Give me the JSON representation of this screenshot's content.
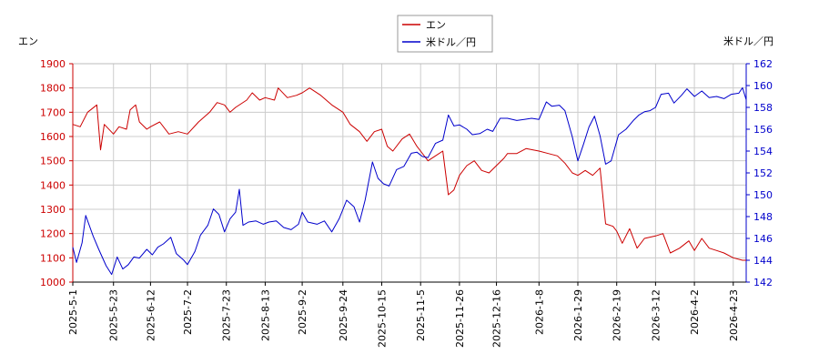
{
  "chart_data": {
    "type": "line",
    "title": "",
    "legend": {
      "placement": "top-center",
      "entries": [
        "エン",
        "米ドル／円"
      ]
    },
    "y_left": {
      "label": "エン",
      "range": [
        1000,
        1900
      ],
      "ticks": [
        "1000",
        "1100",
        "1200",
        "1300",
        "1400",
        "1500",
        "1600",
        "1700",
        "1800",
        "1900"
      ]
    },
    "y_right": {
      "label": "米ドル／円",
      "range": [
        142,
        162
      ],
      "ticks": [
        "142",
        "144",
        "146",
        "148",
        "150",
        "152",
        "154",
        "156",
        "158",
        "160",
        "162"
      ]
    },
    "x": {
      "range": [
        "2025-05-01",
        "2026-04-30"
      ],
      "ticks": [
        "2025-5-1",
        "2025-5-23",
        "2025-6-12",
        "2025-7-2",
        "2025-7-23",
        "2025-8-13",
        "2025-9-2",
        "2025-9-24",
        "2025-10-15",
        "2025-11-5",
        "2025-11-26",
        "2025-12-16",
        "2026-1-8",
        "2026-1-29",
        "2026-2-19",
        "2026-3-12",
        "2026-4-2",
        "2026-4-23"
      ]
    },
    "grid": true,
    "series": [
      {
        "name": "エン",
        "axis": "left",
        "color": "#cc0000",
        "points": [
          [
            "2025-05-01",
            1650
          ],
          [
            "2025-05-05",
            1640
          ],
          [
            "2025-05-09",
            1700
          ],
          [
            "2025-05-14",
            1730
          ],
          [
            "2025-05-16",
            1545
          ],
          [
            "2025-05-18",
            1650
          ],
          [
            "2025-05-23",
            1610
          ],
          [
            "2025-05-26",
            1640
          ],
          [
            "2025-05-30",
            1630
          ],
          [
            "2025-06-01",
            1710
          ],
          [
            "2025-06-04",
            1730
          ],
          [
            "2025-06-06",
            1660
          ],
          [
            "2025-06-10",
            1630
          ],
          [
            "2025-06-12",
            1640
          ],
          [
            "2025-06-17",
            1660
          ],
          [
            "2025-06-22",
            1610
          ],
          [
            "2025-06-27",
            1620
          ],
          [
            "2025-07-02",
            1610
          ],
          [
            "2025-07-08",
            1660
          ],
          [
            "2025-07-14",
            1700
          ],
          [
            "2025-07-18",
            1740
          ],
          [
            "2025-07-22",
            1730
          ],
          [
            "2025-07-25",
            1700
          ],
          [
            "2025-07-28",
            1720
          ],
          [
            "2025-08-03",
            1750
          ],
          [
            "2025-08-06",
            1780
          ],
          [
            "2025-08-10",
            1750
          ],
          [
            "2025-08-13",
            1760
          ],
          [
            "2025-08-18",
            1750
          ],
          [
            "2025-08-20",
            1800
          ],
          [
            "2025-08-25",
            1760
          ],
          [
            "2025-08-30",
            1770
          ],
          [
            "2025-09-02",
            1780
          ],
          [
            "2025-09-06",
            1800
          ],
          [
            "2025-09-12",
            1770
          ],
          [
            "2025-09-18",
            1730
          ],
          [
            "2025-09-24",
            1700
          ],
          [
            "2025-09-28",
            1650
          ],
          [
            "2025-10-03",
            1620
          ],
          [
            "2025-10-07",
            1580
          ],
          [
            "2025-10-11",
            1620
          ],
          [
            "2025-10-15",
            1630
          ],
          [
            "2025-10-18",
            1560
          ],
          [
            "2025-10-21",
            1540
          ],
          [
            "2025-10-26",
            1590
          ],
          [
            "2025-10-30",
            1610
          ],
          [
            "2025-11-03",
            1560
          ],
          [
            "2025-11-05",
            1540
          ],
          [
            "2025-11-09",
            1500
          ],
          [
            "2025-11-13",
            1520
          ],
          [
            "2025-11-17",
            1540
          ],
          [
            "2025-11-20",
            1360
          ],
          [
            "2025-11-23",
            1380
          ],
          [
            "2025-11-26",
            1440
          ],
          [
            "2025-11-30",
            1480
          ],
          [
            "2025-12-04",
            1500
          ],
          [
            "2025-12-08",
            1460
          ],
          [
            "2025-12-12",
            1450
          ],
          [
            "2025-12-16",
            1480
          ],
          [
            "2025-12-20",
            1510
          ],
          [
            "2025-12-22",
            1530
          ],
          [
            "2025-12-27",
            1530
          ],
          [
            "2026-01-01",
            1550
          ],
          [
            "2026-01-08",
            1540
          ],
          [
            "2026-01-13",
            1530
          ],
          [
            "2026-01-18",
            1520
          ],
          [
            "2026-01-22",
            1490
          ],
          [
            "2026-01-26",
            1450
          ],
          [
            "2026-01-29",
            1440
          ],
          [
            "2026-02-02",
            1460
          ],
          [
            "2026-02-06",
            1440
          ],
          [
            "2026-02-10",
            1470
          ],
          [
            "2026-02-13",
            1240
          ],
          [
            "2026-02-17",
            1230
          ],
          [
            "2026-02-19",
            1210
          ],
          [
            "2026-02-22",
            1160
          ],
          [
            "2026-02-26",
            1220
          ],
          [
            "2026-03-02",
            1140
          ],
          [
            "2026-03-06",
            1180
          ],
          [
            "2026-03-12",
            1190
          ],
          [
            "2026-03-16",
            1200
          ],
          [
            "2026-03-20",
            1120
          ],
          [
            "2026-03-25",
            1140
          ],
          [
            "2026-03-30",
            1170
          ],
          [
            "2026-04-02",
            1130
          ],
          [
            "2026-04-06",
            1180
          ],
          [
            "2026-04-10",
            1140
          ],
          [
            "2026-04-14",
            1130
          ],
          [
            "2026-04-18",
            1120
          ],
          [
            "2026-04-23",
            1100
          ],
          [
            "2026-04-28",
            1090
          ],
          [
            "2026-04-30",
            1090
          ]
        ]
      },
      {
        "name": "米ドル／円",
        "axis": "right",
        "color": "#0000cc",
        "points": [
          [
            "2025-05-01",
            145.2
          ],
          [
            "2025-05-03",
            143.8
          ],
          [
            "2025-05-06",
            145.6
          ],
          [
            "2025-05-08",
            148.1
          ],
          [
            "2025-05-12",
            146.2
          ],
          [
            "2025-05-15",
            145.0
          ],
          [
            "2025-05-19",
            143.5
          ],
          [
            "2025-05-22",
            142.7
          ],
          [
            "2025-05-25",
            144.3
          ],
          [
            "2025-05-28",
            143.2
          ],
          [
            "2025-05-31",
            143.6
          ],
          [
            "2025-06-03",
            144.3
          ],
          [
            "2025-06-06",
            144.2
          ],
          [
            "2025-06-10",
            145.0
          ],
          [
            "2025-06-13",
            144.5
          ],
          [
            "2025-06-16",
            145.2
          ],
          [
            "2025-06-19",
            145.5
          ],
          [
            "2025-06-23",
            146.1
          ],
          [
            "2025-06-26",
            144.6
          ],
          [
            "2025-06-30",
            144.0
          ],
          [
            "2025-07-02",
            143.6
          ],
          [
            "2025-07-06",
            144.8
          ],
          [
            "2025-07-09",
            146.3
          ],
          [
            "2025-07-13",
            147.2
          ],
          [
            "2025-07-16",
            148.7
          ],
          [
            "2025-07-19",
            148.2
          ],
          [
            "2025-07-22",
            146.6
          ],
          [
            "2025-07-25",
            147.8
          ],
          [
            "2025-07-28",
            148.4
          ],
          [
            "2025-07-30",
            150.5
          ],
          [
            "2025-08-01",
            147.2
          ],
          [
            "2025-08-04",
            147.5
          ],
          [
            "2025-08-08",
            147.6
          ],
          [
            "2025-08-12",
            147.3
          ],
          [
            "2025-08-15",
            147.5
          ],
          [
            "2025-08-19",
            147.6
          ],
          [
            "2025-08-23",
            147.0
          ],
          [
            "2025-08-27",
            146.8
          ],
          [
            "2025-08-31",
            147.3
          ],
          [
            "2025-09-02",
            148.4
          ],
          [
            "2025-09-05",
            147.5
          ],
          [
            "2025-09-10",
            147.3
          ],
          [
            "2025-09-14",
            147.6
          ],
          [
            "2025-09-18",
            146.6
          ],
          [
            "2025-09-22",
            147.8
          ],
          [
            "2025-09-26",
            149.5
          ],
          [
            "2025-09-30",
            148.9
          ],
          [
            "2025-10-03",
            147.5
          ],
          [
            "2025-10-06",
            149.5
          ],
          [
            "2025-10-10",
            153.0
          ],
          [
            "2025-10-13",
            151.5
          ],
          [
            "2025-10-16",
            151.0
          ],
          [
            "2025-10-19",
            150.8
          ],
          [
            "2025-10-23",
            152.3
          ],
          [
            "2025-10-27",
            152.6
          ],
          [
            "2025-10-31",
            153.8
          ],
          [
            "2025-11-03",
            153.9
          ],
          [
            "2025-11-06",
            153.5
          ],
          [
            "2025-11-09",
            153.4
          ],
          [
            "2025-11-13",
            154.7
          ],
          [
            "2025-11-17",
            155.0
          ],
          [
            "2025-11-20",
            157.3
          ],
          [
            "2025-11-23",
            156.3
          ],
          [
            "2025-11-26",
            156.4
          ],
          [
            "2025-11-30",
            156.0
          ],
          [
            "2025-12-03",
            155.5
          ],
          [
            "2025-12-07",
            155.6
          ],
          [
            "2025-12-11",
            156.0
          ],
          [
            "2025-12-14",
            155.8
          ],
          [
            "2025-12-18",
            157.0
          ],
          [
            "2025-12-22",
            157.0
          ],
          [
            "2025-12-27",
            156.8
          ],
          [
            "2025-12-31",
            156.9
          ],
          [
            "2026-01-04",
            157.0
          ],
          [
            "2026-01-08",
            156.9
          ],
          [
            "2026-01-12",
            158.5
          ],
          [
            "2026-01-15",
            158.1
          ],
          [
            "2026-01-19",
            158.2
          ],
          [
            "2026-01-22",
            157.7
          ],
          [
            "2026-01-26",
            155.3
          ],
          [
            "2026-01-29",
            153.1
          ],
          [
            "2026-02-01",
            154.6
          ],
          [
            "2026-02-04",
            156.2
          ],
          [
            "2026-02-07",
            157.2
          ],
          [
            "2026-02-10",
            155.4
          ],
          [
            "2026-02-13",
            152.8
          ],
          [
            "2026-02-16",
            153.1
          ],
          [
            "2026-02-20",
            155.5
          ],
          [
            "2026-02-24",
            156.0
          ],
          [
            "2026-02-28",
            156.8
          ],
          [
            "2026-03-03",
            157.3
          ],
          [
            "2026-03-06",
            157.6
          ],
          [
            "2026-03-09",
            157.7
          ],
          [
            "2026-03-12",
            158.0
          ],
          [
            "2026-03-15",
            159.2
          ],
          [
            "2026-03-19",
            159.3
          ],
          [
            "2026-03-22",
            158.4
          ],
          [
            "2026-03-26",
            159.1
          ],
          [
            "2026-03-29",
            159.7
          ],
          [
            "2026-04-02",
            159.0
          ],
          [
            "2026-04-06",
            159.5
          ],
          [
            "2026-04-10",
            158.9
          ],
          [
            "2026-04-14",
            159.0
          ],
          [
            "2026-04-18",
            158.8
          ],
          [
            "2026-04-22",
            159.2
          ],
          [
            "2026-04-26",
            159.3
          ],
          [
            "2026-04-28",
            159.8
          ],
          [
            "2026-04-30",
            158.7
          ]
        ]
      }
    ]
  }
}
